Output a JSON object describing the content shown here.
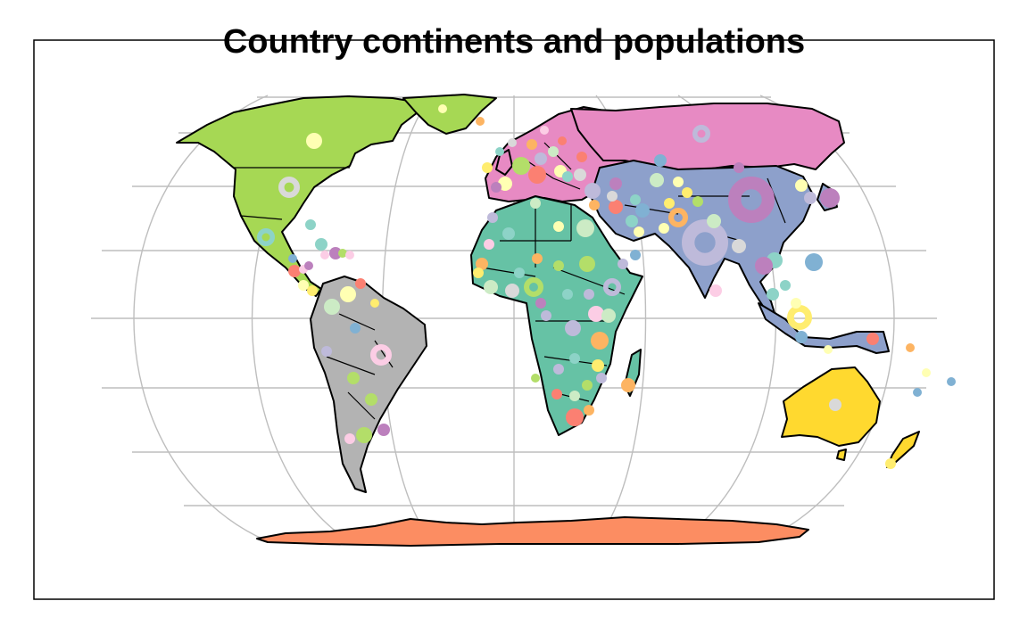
{
  "title": "Country continents and populations",
  "projection": "Robinson",
  "graticule": {
    "shown": true,
    "color": "#bebebe"
  },
  "continent_colors": {
    "North America": "#a6d854",
    "South America": "#b3b3b3",
    "Europe": "#e78ac3",
    "Asia": "#8da0cb",
    "Africa": "#66c2a5",
    "Oceania": "#ffd92f",
    "Antarctica": "#fc8d62"
  },
  "bubble_palette": [
    "#8dd3c7",
    "#ffffb3",
    "#bebada",
    "#fb8072",
    "#80b1d3",
    "#fdb462",
    "#b3de69",
    "#fccde5",
    "#d9d9d9",
    "#bc80bd",
    "#ccebc5",
    "#ffed6f"
  ]
}
